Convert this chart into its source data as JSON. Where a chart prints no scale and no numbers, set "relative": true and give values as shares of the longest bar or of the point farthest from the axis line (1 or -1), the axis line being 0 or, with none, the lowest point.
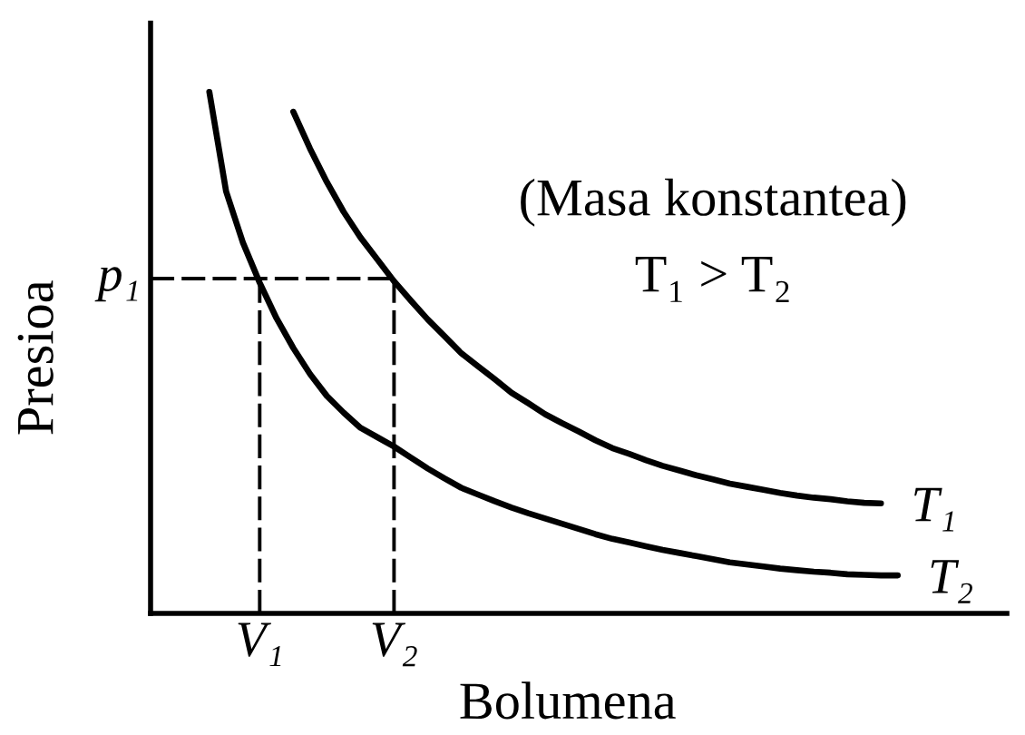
{
  "chart_data": {
    "type": "line",
    "relative": true,
    "xlabel": "Bolumena",
    "ylabel": "Presioa",
    "annotations": [
      "(Masa konstantea)",
      "T₁ > T₂"
    ],
    "categories": [
      null,
      null,
      null,
      null,
      null,
      null,
      "V₁",
      null,
      null,
      null,
      null,
      null,
      null,
      null,
      "V₂",
      null,
      null,
      null,
      null,
      null,
      null,
      null,
      null,
      null,
      null,
      null,
      null,
      null,
      null,
      null,
      null,
      null,
      null,
      null,
      null,
      null,
      null,
      null,
      null,
      null,
      null,
      null,
      null,
      null,
      null,
      null,
      null,
      null,
      null,
      null,
      null
    ],
    "series": [
      {
        "name": "T₁",
        "color": "#000000",
        "values": [
          null,
          null,
          null,
          null,
          null,
          null,
          null,
          null,
          0.962,
          0.891,
          0.827,
          0.77,
          0.721,
          0.679,
          0.637,
          0.6,
          0.564,
          0.532,
          0.499,
          0.474,
          0.449,
          0.423,
          0.403,
          0.382,
          0.365,
          0.349,
          0.332,
          0.317,
          0.306,
          0.294,
          0.283,
          0.274,
          0.265,
          0.257,
          0.249,
          0.243,
          0.237,
          0.231,
          0.226,
          0.222,
          0.219,
          0.215,
          0.212,
          0.211,
          null,
          null,
          null,
          null,
          null,
          null,
          null
        ]
      },
      {
        "name": "T₂",
        "color": "#000000",
        "values": [
          null,
          null,
          null,
          1.0,
          0.809,
          0.711,
          0.634,
          0.566,
          0.509,
          0.459,
          0.417,
          0.385,
          0.356,
          0.338,
          0.32,
          0.299,
          0.278,
          0.259,
          0.241,
          0.228,
          0.215,
          0.203,
          0.192,
          0.182,
          0.172,
          0.162,
          0.152,
          0.143,
          0.136,
          0.129,
          0.122,
          0.116,
          0.11,
          0.104,
          0.098,
          0.094,
          0.09,
          0.086,
          0.083,
          0.08,
          0.078,
          0.075,
          0.074,
          0.073,
          0.073,
          null,
          null,
          null,
          null,
          null,
          null
        ]
      }
    ],
    "ref_lines": [
      {
        "axis": "y",
        "value": 0.642,
        "label": "p₁",
        "color": "#000000",
        "line_style": "dashed"
      },
      {
        "axis": "x",
        "value": "V₁",
        "color": "#000000",
        "line_style": "dashed"
      },
      {
        "axis": "x",
        "value": "V₂",
        "color": "#000000",
        "line_style": "dashed"
      }
    ]
  }
}
